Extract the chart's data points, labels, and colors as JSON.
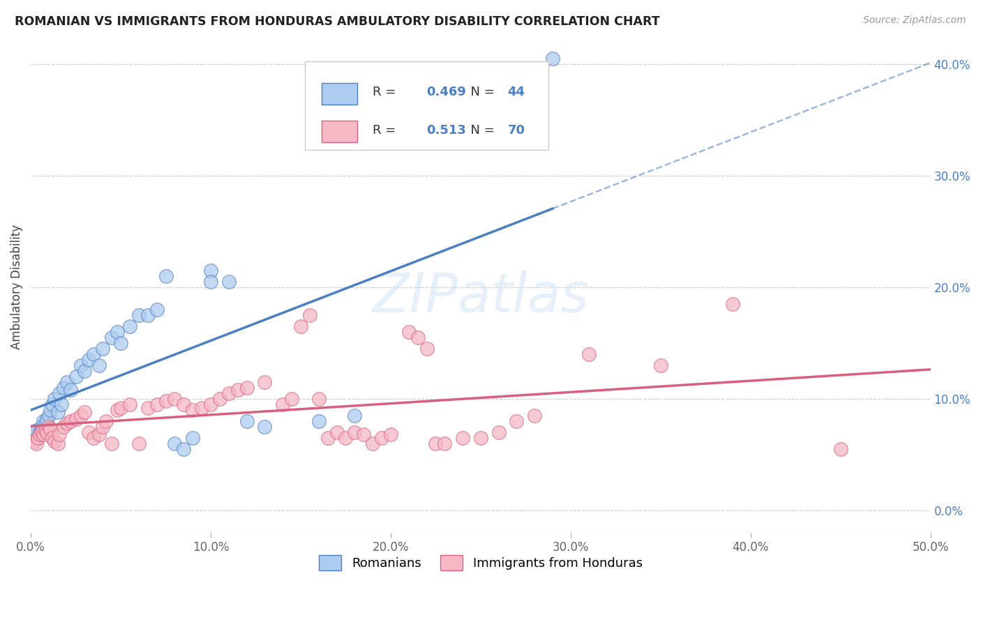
{
  "title": "ROMANIAN VS IMMIGRANTS FROM HONDURAS AMBULATORY DISABILITY CORRELATION CHART",
  "source": "Source: ZipAtlas.com",
  "xlabel_ticks": [
    "0.0%",
    "10.0%",
    "20.0%",
    "30.0%",
    "40.0%",
    "50.0%"
  ],
  "ylabel_ticks": [
    "0.0%",
    "10.0%",
    "20.0%",
    "30.0%",
    "40.0%"
  ],
  "xlabel_tick_vals": [
    0,
    0.1,
    0.2,
    0.3,
    0.4,
    0.5
  ],
  "ylabel_tick_vals": [
    0,
    0.1,
    0.2,
    0.3,
    0.4
  ],
  "xlim": [
    0,
    0.5
  ],
  "ylim": [
    -0.02,
    0.42
  ],
  "ylabel": "Ambulatory Disability",
  "blue_color": "#aeccf0",
  "pink_color": "#f5b8c4",
  "blue_line_color": "#4a7fc1",
  "pink_line_color": "#d95f7f",
  "R_blue": "0.469",
  "N_blue": "44",
  "R_pink": "0.513",
  "N_pink": "70",
  "blue_scatter": [
    [
      0.002,
      0.068
    ],
    [
      0.003,
      0.072
    ],
    [
      0.004,
      0.065
    ],
    [
      0.005,
      0.07
    ],
    [
      0.006,
      0.075
    ],
    [
      0.007,
      0.08
    ],
    [
      0.008,
      0.078
    ],
    [
      0.009,
      0.082
    ],
    [
      0.01,
      0.085
    ],
    [
      0.011,
      0.09
    ],
    [
      0.012,
      0.095
    ],
    [
      0.013,
      0.1
    ],
    [
      0.015,
      0.088
    ],
    [
      0.016,
      0.105
    ],
    [
      0.017,
      0.095
    ],
    [
      0.018,
      0.11
    ],
    [
      0.02,
      0.115
    ],
    [
      0.022,
      0.108
    ],
    [
      0.025,
      0.12
    ],
    [
      0.028,
      0.13
    ],
    [
      0.03,
      0.125
    ],
    [
      0.032,
      0.135
    ],
    [
      0.035,
      0.14
    ],
    [
      0.038,
      0.13
    ],
    [
      0.04,
      0.145
    ],
    [
      0.045,
      0.155
    ],
    [
      0.048,
      0.16
    ],
    [
      0.05,
      0.15
    ],
    [
      0.055,
      0.165
    ],
    [
      0.06,
      0.175
    ],
    [
      0.065,
      0.175
    ],
    [
      0.07,
      0.18
    ],
    [
      0.075,
      0.21
    ],
    [
      0.08,
      0.06
    ],
    [
      0.085,
      0.055
    ],
    [
      0.09,
      0.065
    ],
    [
      0.1,
      0.215
    ],
    [
      0.11,
      0.205
    ],
    [
      0.12,
      0.08
    ],
    [
      0.13,
      0.075
    ],
    [
      0.16,
      0.08
    ],
    [
      0.18,
      0.085
    ],
    [
      0.29,
      0.405
    ],
    [
      0.1,
      0.205
    ]
  ],
  "pink_scatter": [
    [
      0.002,
      0.062
    ],
    [
      0.003,
      0.06
    ],
    [
      0.004,
      0.065
    ],
    [
      0.005,
      0.068
    ],
    [
      0.006,
      0.07
    ],
    [
      0.007,
      0.068
    ],
    [
      0.008,
      0.072
    ],
    [
      0.009,
      0.07
    ],
    [
      0.01,
      0.075
    ],
    [
      0.011,
      0.073
    ],
    [
      0.012,
      0.065
    ],
    [
      0.013,
      0.062
    ],
    [
      0.015,
      0.06
    ],
    [
      0.016,
      0.068
    ],
    [
      0.018,
      0.075
    ],
    [
      0.02,
      0.078
    ],
    [
      0.022,
      0.08
    ],
    [
      0.025,
      0.082
    ],
    [
      0.028,
      0.085
    ],
    [
      0.03,
      0.088
    ],
    [
      0.032,
      0.07
    ],
    [
      0.035,
      0.065
    ],
    [
      0.038,
      0.068
    ],
    [
      0.04,
      0.075
    ],
    [
      0.042,
      0.08
    ],
    [
      0.045,
      0.06
    ],
    [
      0.048,
      0.09
    ],
    [
      0.05,
      0.092
    ],
    [
      0.055,
      0.095
    ],
    [
      0.06,
      0.06
    ],
    [
      0.065,
      0.092
    ],
    [
      0.07,
      0.095
    ],
    [
      0.075,
      0.098
    ],
    [
      0.08,
      0.1
    ],
    [
      0.085,
      0.095
    ],
    [
      0.09,
      0.09
    ],
    [
      0.095,
      0.092
    ],
    [
      0.1,
      0.095
    ],
    [
      0.105,
      0.1
    ],
    [
      0.11,
      0.105
    ],
    [
      0.115,
      0.108
    ],
    [
      0.12,
      0.11
    ],
    [
      0.13,
      0.115
    ],
    [
      0.14,
      0.095
    ],
    [
      0.145,
      0.1
    ],
    [
      0.15,
      0.165
    ],
    [
      0.155,
      0.175
    ],
    [
      0.16,
      0.1
    ],
    [
      0.165,
      0.065
    ],
    [
      0.17,
      0.07
    ],
    [
      0.175,
      0.065
    ],
    [
      0.18,
      0.07
    ],
    [
      0.185,
      0.068
    ],
    [
      0.19,
      0.06
    ],
    [
      0.195,
      0.065
    ],
    [
      0.2,
      0.068
    ],
    [
      0.21,
      0.16
    ],
    [
      0.215,
      0.155
    ],
    [
      0.22,
      0.145
    ],
    [
      0.225,
      0.06
    ],
    [
      0.23,
      0.06
    ],
    [
      0.24,
      0.065
    ],
    [
      0.25,
      0.065
    ],
    [
      0.26,
      0.07
    ],
    [
      0.27,
      0.08
    ],
    [
      0.28,
      0.085
    ],
    [
      0.31,
      0.14
    ],
    [
      0.35,
      0.13
    ],
    [
      0.39,
      0.185
    ],
    [
      0.45,
      0.055
    ]
  ]
}
